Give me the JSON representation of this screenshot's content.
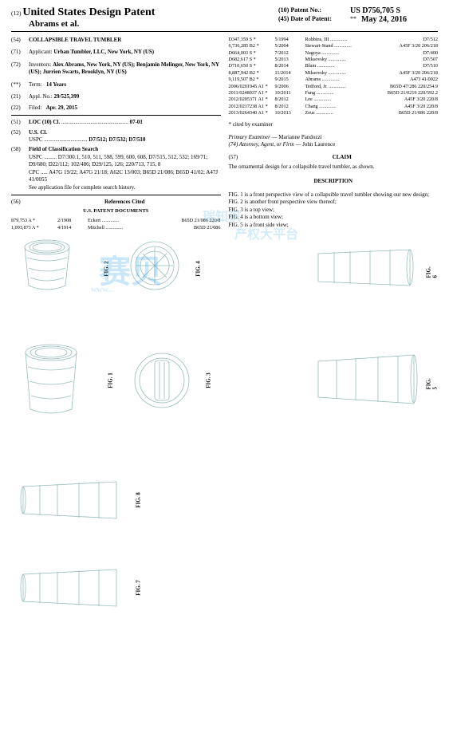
{
  "header": {
    "docType": "United States Design Patent",
    "docNum": "(12)",
    "authors": "Abrams et al.",
    "patNoLabel": "(10) Patent No.:",
    "patNo": "US D756,705 S",
    "dopLabel": "(45) Date of Patent:",
    "dopStar": "**",
    "dop": "May 24, 2016"
  },
  "left": {
    "title": {
      "code": "(54)",
      "text": "COLLAPSIBLE TRAVEL TUMBLER"
    },
    "applicant": {
      "code": "(71)",
      "label": "Applicant:",
      "text": "Urban Tumbler, LLC, New York, NY (US)"
    },
    "inventors": {
      "code": "(72)",
      "label": "Inventors:",
      "text": "Alex Abrams, New York, NY (US); Benjamin Melinger, New York, NY (US); Jurrien Swarts, Brooklyn, NY (US)"
    },
    "term": {
      "code": "(**)",
      "label": "Term:",
      "text": "14 Years"
    },
    "appl": {
      "code": "(21)",
      "label": "Appl. No.:",
      "text": "29/525,399"
    },
    "filed": {
      "code": "(22)",
      "label": "Filed:",
      "text": "Apr. 29, 2015"
    },
    "loc": {
      "code": "(51)",
      "label": "LOC (10) Cl.",
      "text": "07-01"
    },
    "uscl": {
      "code": "(52)",
      "label": "U.S. Cl.",
      "sub": "USPC",
      "text": "D7/512; D7/532; D7/510"
    },
    "fcs": {
      "code": "(58)",
      "label": "Field of Classification Search",
      "uspc": "USPC ......... D7/300.1, 510, 511, 598, 599, 600, 608, D7/515, 512, 532; 169/71; D9/680; D22/112; 102/486; D29/125, 126; 220/713, 715, 8",
      "cpc": "CPC ..... A47G 19/22;  A47G 21/18;  A62C 13/003; B65D 21/086;  B65D 41/02;  A47J 41/0055",
      "see": "See application file for complete search history."
    },
    "refs": {
      "code": "(56)",
      "label": "References Cited",
      "docsHdr": "U.S. PATENT DOCUMENTS",
      "rows": [
        {
          "c1": "879,753 A *",
          "c2": "2/1908",
          "c3": "Eckert",
          "c4": "B65D 21/086 220/8"
        },
        {
          "c1": "1,093,873 A *",
          "c2": "4/1914",
          "c3": "Mitchell",
          "c4": "B65D 21/086"
        }
      ]
    }
  },
  "right": {
    "refs": [
      {
        "c1": "D347,359 S *",
        "c2": "5/1994",
        "c3": "Robbins, III",
        "c4": "D7/512"
      },
      {
        "c1": "6,736,285 B2 *",
        "c2": "5/2004",
        "c3": "Stewart-Stand",
        "c4": "A45F 3/20 206/218"
      },
      {
        "c1": "D664,003 S *",
        "c2": "7/2012",
        "c3": "Nagoya",
        "c4": "D7/400"
      },
      {
        "c1": "D682,617 S *",
        "c2": "5/2013",
        "c3": "Miksovsky",
        "c4": "D7/507"
      },
      {
        "c1": "D710,650 S *",
        "c2": "8/2014",
        "c3": "Blum",
        "c4": "D7/510"
      },
      {
        "c1": "8,887,942 B2 *",
        "c2": "11/2014",
        "c3": "Miksovsky",
        "c4": "A45F 3/20 206/218"
      },
      {
        "c1": "9,119,507 B2 *",
        "c2": "9/2015",
        "c3": "Abrams",
        "c4": "A47J 41/0022"
      },
      {
        "c1": "2006/0201945 A1 *",
        "c2": "9/2006",
        "c3": "Tedford, Jr.",
        "c4": "B65D 47/286 220/254.9"
      },
      {
        "c1": "2011/0248037 A1 *",
        "c2": "10/2011",
        "c3": "Fung",
        "c4": "B65D 21/0219 220/592.2"
      },
      {
        "c1": "2012/0205371 A1 *",
        "c2": "8/2012",
        "c3": "Lee",
        "c4": "A45F 3/20 220/8"
      },
      {
        "c1": "2012/0217238 A1 *",
        "c2": "8/2012",
        "c3": "Chang",
        "c4": "A45F 3/20 220/8"
      },
      {
        "c1": "2013/0264340 A1 *",
        "c2": "10/2013",
        "c3": "Zeus",
        "c4": "B65D 21/086 220/8"
      }
    ],
    "cited": "* cited by examiner",
    "examiner": {
      "label": "Primary Examiner",
      "name": "Marianne Pandozzi"
    },
    "attorney": {
      "label": "(74) Attorney, Agent, or Firm",
      "name": "John Laurence"
    },
    "claim": {
      "code": "(57)",
      "hdr": "CLAIM",
      "text": "The ornamental design for a collapsible travel tumbler, as shown."
    },
    "desc": {
      "hdr": "DESCRIPTION",
      "figs": [
        "FIG. 1 is a front perspective view of a collapsible travel tumbler showing our new design;",
        "FIG. 2 is another front perspective view thereof;",
        "FIG. 3 is a top view;",
        "FIG. 4 is a bottom view;",
        "FIG. 5 is a front side view;"
      ]
    }
  },
  "figLabels": {
    "f1": "FIG. 1",
    "f2": "FIG. 2",
    "f3": "FIG. 3",
    "f4": "FIG. 4",
    "f5": "FIG. 5",
    "f6": "FIG. 6",
    "f7": "FIG. 7",
    "f8": "FIG. 8"
  },
  "watermark": {
    "main": "赛贝",
    "sub1": "瑞知识",
    "sub2": "产权大平台",
    "url": "www..."
  }
}
